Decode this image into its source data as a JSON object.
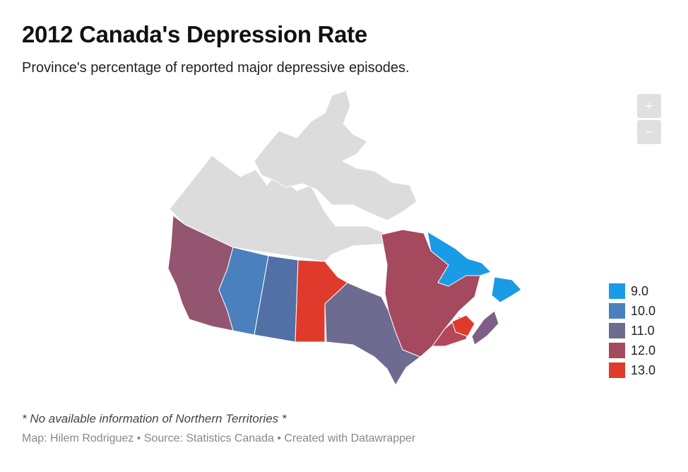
{
  "header": {
    "title": "2012 Canada's Depression Rate",
    "subtitle": "Province's percentage of reported major depressive episodes."
  },
  "zoom": {
    "in_label": "+",
    "out_label": "−"
  },
  "legend": [
    {
      "label": "9.0",
      "color": "#1a9be6"
    },
    {
      "label": "10.0",
      "color": "#4a80bd"
    },
    {
      "label": "11.0",
      "color": "#6e6b91"
    },
    {
      "label": "12.0",
      "color": "#a5495e"
    },
    {
      "label": "13.0",
      "color": "#e03a2c"
    }
  ],
  "regions": {
    "no_data_color": "#dcdcdc",
    "british_columbia": 12.0,
    "alberta": 10.0,
    "saskatchewan": 10.0,
    "manitoba": 13.0,
    "ontario": 11.0,
    "quebec": 12.0,
    "newfoundland_and_labrador": 9.0,
    "new_brunswick": 12.0,
    "prince_edward_island": 13.0,
    "nova_scotia": 11.0
  },
  "footer": {
    "note": "* No available information of Northern Territories *",
    "credits": "Map: Hilem Rodriguez • Source: Statistics Canada • Created with Datawrapper"
  }
}
